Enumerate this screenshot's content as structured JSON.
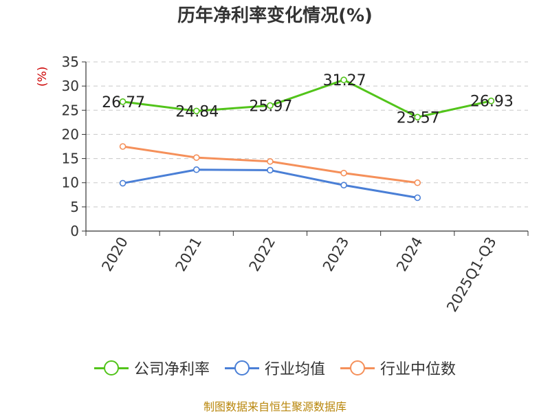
{
  "chart_data": {
    "type": "line",
    "title": "历年净利率变化情况(%)",
    "y_unit": "(%)",
    "categories": [
      "2020",
      "2021",
      "2022",
      "2023",
      "2024",
      "2025Q1-Q3"
    ],
    "ylim": [
      0,
      35
    ],
    "yticks": [
      0,
      5,
      10,
      15,
      20,
      25,
      30,
      35
    ],
    "grid": true,
    "legend_position": "bottom",
    "series": [
      {
        "name": "公司净利率",
        "color": "#52c41a",
        "values": [
          26.77,
          24.84,
          25.97,
          31.27,
          23.57,
          26.93
        ],
        "labels": true
      },
      {
        "name": "行业均值",
        "color": "#4a7fd6",
        "values": [
          9.9,
          12.7,
          12.6,
          9.5,
          6.9,
          null
        ],
        "labels": false
      },
      {
        "name": "行业中位数",
        "color": "#f5905a",
        "values": [
          17.5,
          15.2,
          14.4,
          12.0,
          10.0,
          null
        ],
        "labels": false
      }
    ]
  },
  "source_note": "制图数据来自恒生聚源数据库"
}
